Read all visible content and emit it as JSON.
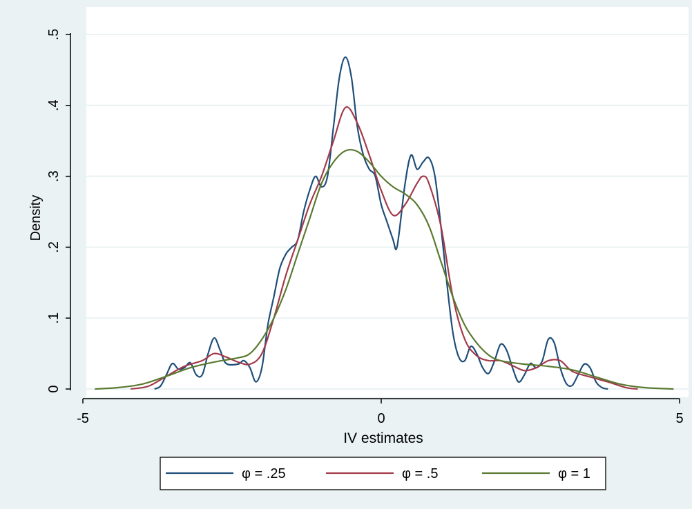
{
  "chart_data": {
    "type": "line",
    "title": "",
    "xlabel": "IV estimates",
    "ylabel": "Density",
    "xlim": [
      -5,
      5
    ],
    "ylim": [
      0,
      0.5
    ],
    "x_ticks": [
      -5,
      0,
      5
    ],
    "x_tick_labels": [
      "-5",
      "0",
      "5"
    ],
    "y_ticks": [
      0,
      0.1,
      0.2,
      0.3,
      0.4,
      0.5
    ],
    "y_tick_labels": [
      "0",
      ".1",
      ".2",
      ".3",
      ".4",
      ".5"
    ],
    "grid": true,
    "legend_position": "bottom",
    "colors": {
      "outer_background": "#eaf2f3",
      "plot_background": "#ffffff",
      "grid": "#eaf2f3"
    },
    "series": [
      {
        "name": "φ = .25",
        "color": "#1f4e79",
        "points": [
          [
            -3.8,
            0.0
          ],
          [
            -3.7,
            0.004
          ],
          [
            -3.6,
            0.02
          ],
          [
            -3.5,
            0.036
          ],
          [
            -3.4,
            0.028
          ],
          [
            -3.3,
            0.03
          ],
          [
            -3.2,
            0.037
          ],
          [
            -3.1,
            0.02
          ],
          [
            -3.0,
            0.02
          ],
          [
            -2.9,
            0.05
          ],
          [
            -2.8,
            0.072
          ],
          [
            -2.7,
            0.055
          ],
          [
            -2.6,
            0.036
          ],
          [
            -2.4,
            0.035
          ],
          [
            -2.3,
            0.04
          ],
          [
            -2.2,
            0.03
          ],
          [
            -2.1,
            0.01
          ],
          [
            -2.0,
            0.03
          ],
          [
            -1.9,
            0.09
          ],
          [
            -1.8,
            0.13
          ],
          [
            -1.7,
            0.17
          ],
          [
            -1.6,
            0.19
          ],
          [
            -1.5,
            0.2
          ],
          [
            -1.4,
            0.21
          ],
          [
            -1.3,
            0.25
          ],
          [
            -1.2,
            0.28
          ],
          [
            -1.1,
            0.3
          ],
          [
            -1.0,
            0.285
          ],
          [
            -0.9,
            0.3
          ],
          [
            -0.8,
            0.37
          ],
          [
            -0.7,
            0.44
          ],
          [
            -0.6,
            0.468
          ],
          [
            -0.5,
            0.44
          ],
          [
            -0.4,
            0.37
          ],
          [
            -0.3,
            0.33
          ],
          [
            -0.2,
            0.31
          ],
          [
            -0.1,
            0.3
          ],
          [
            0.0,
            0.26
          ],
          [
            0.1,
            0.235
          ],
          [
            0.2,
            0.21
          ],
          [
            0.25,
            0.197
          ],
          [
            0.3,
            0.22
          ],
          [
            0.4,
            0.29
          ],
          [
            0.5,
            0.33
          ],
          [
            0.6,
            0.31
          ],
          [
            0.7,
            0.32
          ],
          [
            0.8,
            0.326
          ],
          [
            0.9,
            0.3
          ],
          [
            1.0,
            0.23
          ],
          [
            1.1,
            0.15
          ],
          [
            1.2,
            0.08
          ],
          [
            1.3,
            0.045
          ],
          [
            1.4,
            0.04
          ],
          [
            1.5,
            0.06
          ],
          [
            1.6,
            0.05
          ],
          [
            1.7,
            0.03
          ],
          [
            1.8,
            0.022
          ],
          [
            1.9,
            0.04
          ],
          [
            2.0,
            0.063
          ],
          [
            2.1,
            0.055
          ],
          [
            2.2,
            0.03
          ],
          [
            2.3,
            0.01
          ],
          [
            2.4,
            0.02
          ],
          [
            2.5,
            0.036
          ],
          [
            2.6,
            0.03
          ],
          [
            2.7,
            0.04
          ],
          [
            2.8,
            0.07
          ],
          [
            2.9,
            0.065
          ],
          [
            3.0,
            0.03
          ],
          [
            3.1,
            0.008
          ],
          [
            3.2,
            0.005
          ],
          [
            3.3,
            0.02
          ],
          [
            3.4,
            0.035
          ],
          [
            3.5,
            0.03
          ],
          [
            3.6,
            0.01
          ],
          [
            3.7,
            0.002
          ],
          [
            3.8,
            0.0
          ]
        ]
      },
      {
        "name": "φ = .5",
        "color": "#a23a4a",
        "points": [
          [
            -4.2,
            0.0
          ],
          [
            -3.9,
            0.004
          ],
          [
            -3.6,
            0.018
          ],
          [
            -3.3,
            0.032
          ],
          [
            -3.0,
            0.04
          ],
          [
            -2.8,
            0.05
          ],
          [
            -2.6,
            0.045
          ],
          [
            -2.4,
            0.038
          ],
          [
            -2.2,
            0.035
          ],
          [
            -2.0,
            0.05
          ],
          [
            -1.8,
            0.1
          ],
          [
            -1.6,
            0.16
          ],
          [
            -1.4,
            0.21
          ],
          [
            -1.2,
            0.26
          ],
          [
            -1.0,
            0.3
          ],
          [
            -0.8,
            0.35
          ],
          [
            -0.6,
            0.397
          ],
          [
            -0.4,
            0.375
          ],
          [
            -0.2,
            0.33
          ],
          [
            0.0,
            0.28
          ],
          [
            0.2,
            0.245
          ],
          [
            0.4,
            0.26
          ],
          [
            0.6,
            0.29
          ],
          [
            0.7,
            0.3
          ],
          [
            0.8,
            0.29
          ],
          [
            1.0,
            0.23
          ],
          [
            1.2,
            0.13
          ],
          [
            1.4,
            0.07
          ],
          [
            1.6,
            0.047
          ],
          [
            1.8,
            0.04
          ],
          [
            2.0,
            0.04
          ],
          [
            2.2,
            0.033
          ],
          [
            2.4,
            0.026
          ],
          [
            2.6,
            0.03
          ],
          [
            2.8,
            0.04
          ],
          [
            3.0,
            0.04
          ],
          [
            3.2,
            0.025
          ],
          [
            3.5,
            0.017
          ],
          [
            3.8,
            0.01
          ],
          [
            4.1,
            0.002
          ],
          [
            4.3,
            0.0
          ]
        ]
      },
      {
        "name": "φ = 1",
        "color": "#5a7a30",
        "points": [
          [
            -4.8,
            0.0
          ],
          [
            -4.4,
            0.002
          ],
          [
            -4.0,
            0.007
          ],
          [
            -3.6,
            0.018
          ],
          [
            -3.2,
            0.03
          ],
          [
            -2.8,
            0.038
          ],
          [
            -2.4,
            0.044
          ],
          [
            -2.2,
            0.05
          ],
          [
            -2.0,
            0.07
          ],
          [
            -1.8,
            0.1
          ],
          [
            -1.6,
            0.14
          ],
          [
            -1.4,
            0.19
          ],
          [
            -1.2,
            0.24
          ],
          [
            -1.0,
            0.29
          ],
          [
            -0.8,
            0.32
          ],
          [
            -0.6,
            0.336
          ],
          [
            -0.4,
            0.335
          ],
          [
            -0.2,
            0.32
          ],
          [
            0.0,
            0.3
          ],
          [
            0.2,
            0.285
          ],
          [
            0.4,
            0.275
          ],
          [
            0.6,
            0.26
          ],
          [
            0.8,
            0.23
          ],
          [
            1.0,
            0.18
          ],
          [
            1.2,
            0.13
          ],
          [
            1.4,
            0.09
          ],
          [
            1.6,
            0.065
          ],
          [
            1.8,
            0.048
          ],
          [
            2.0,
            0.04
          ],
          [
            2.4,
            0.035
          ],
          [
            2.8,
            0.032
          ],
          [
            3.2,
            0.027
          ],
          [
            3.6,
            0.017
          ],
          [
            4.0,
            0.007
          ],
          [
            4.4,
            0.002
          ],
          [
            4.9,
            0.0
          ]
        ]
      }
    ]
  }
}
